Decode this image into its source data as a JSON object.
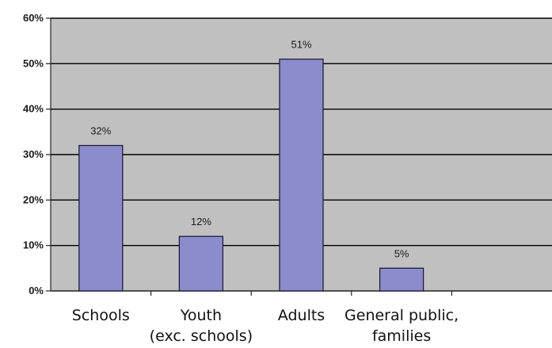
{
  "chart_data": {
    "type": "bar",
    "categories": [
      [
        "Schools"
      ],
      [
        "Youth",
        "(exc. schools)"
      ],
      [
        "Adults"
      ],
      [
        "General public,",
        "families"
      ],
      [
        ""
      ]
    ],
    "values": [
      32,
      12,
      51,
      5,
      null
    ],
    "data_labels": [
      "32%",
      "12%",
      "51%",
      "5%",
      ""
    ],
    "ylim": [
      0,
      60
    ],
    "yticks": [
      0,
      10,
      20,
      30,
      40,
      50,
      60
    ],
    "ytick_labels": [
      "0%",
      "10%",
      "20%",
      "30%",
      "40%",
      "50%",
      "60%"
    ],
    "title": "",
    "xlabel": "",
    "ylabel": "",
    "grid": true,
    "legend": "none",
    "colors": {
      "plot_background": "#c0c0c0",
      "bar_fill": "#8c8ccc",
      "bar_stroke": "#1e1e3a",
      "gridline": "#000000",
      "axis": "#222222"
    }
  }
}
